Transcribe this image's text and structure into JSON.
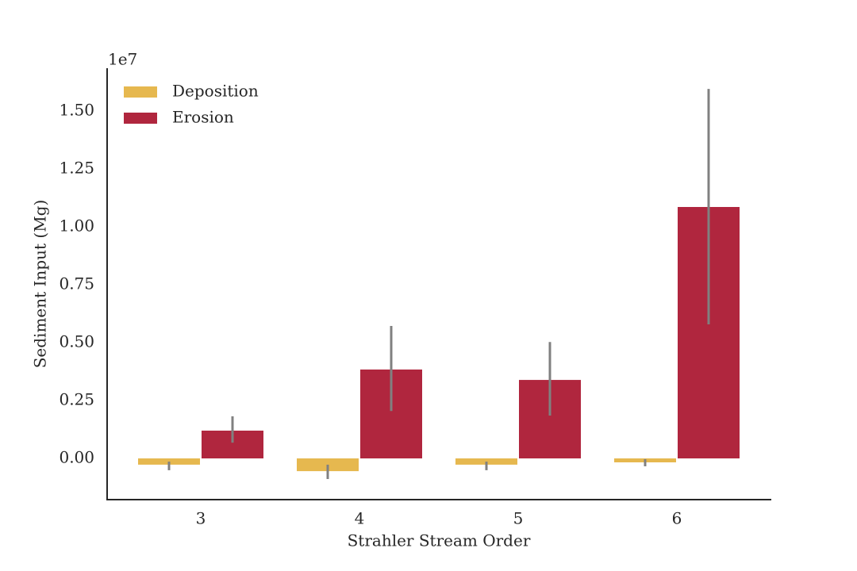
{
  "chart_data": {
    "type": "bar",
    "x_label": "Strahler Stream Order",
    "y_label": "Sediment Input (Mg)",
    "y_offset_label": "1e7",
    "categories": [
      "3",
      "4",
      "5",
      "6"
    ],
    "series": [
      {
        "name": "Deposition",
        "color": "#e6b84f",
        "values": [
          -0.027,
          -0.055,
          -0.027,
          -0.017
        ],
        "ci": [
          [
            -0.051,
            -0.014
          ],
          [
            -0.089,
            -0.027
          ],
          [
            -0.051,
            -0.014
          ],
          [
            -0.034,
            -0.003
          ]
        ]
      },
      {
        "name": "Erosion",
        "color": "#b0263e",
        "values": [
          0.12,
          0.384,
          0.339,
          1.086
        ],
        "ci": [
          [
            0.068,
            0.182
          ],
          [
            0.205,
            0.572
          ],
          [
            0.185,
            0.503
          ],
          [
            0.579,
            1.596
          ]
        ]
      }
    ],
    "ylim": [
      -0.178,
      1.682
    ],
    "yticks": [
      {
        "value": 0,
        "label": "0.00"
      },
      0.25,
      {
        "value": 0.5,
        "label": "0.50"
      },
      0.75,
      {
        "value": 1,
        "label": "1.00"
      },
      1.25,
      {
        "value": 1.5,
        "label": "1.50"
      }
    ],
    "error_color": "#808080",
    "legend": "upper left"
  }
}
